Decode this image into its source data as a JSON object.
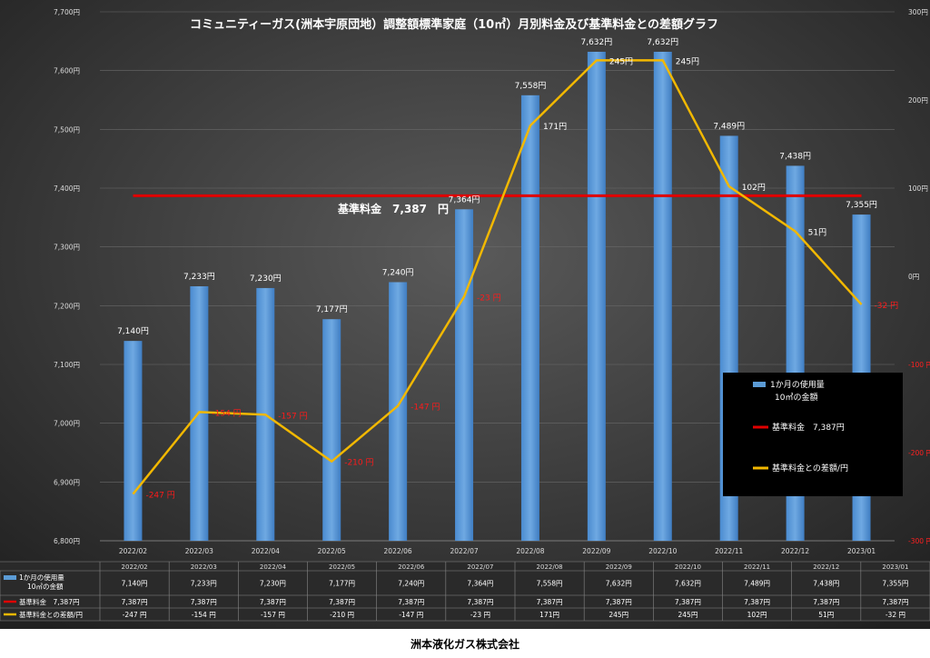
{
  "chart_data": {
    "type": "bar",
    "title": "コミュニティーガス(洲本宇原団地）調整額標準家庭（10㎥）月別料金及び基準料金との差額グラフ",
    "categories": [
      "2022/02",
      "2022/03",
      "2022/04",
      "2022/05",
      "2022/06",
      "2022/07",
      "2022/08",
      "2022/09",
      "2022/10",
      "2022/11",
      "2022/12",
      "2023/01"
    ],
    "series": [
      {
        "name": "1か月の使用量\n10㎥の金額",
        "type": "bar",
        "axis": "left",
        "color": "#5b9bd5",
        "values": [
          7140,
          7233,
          7230,
          7177,
          7240,
          7364,
          7558,
          7632,
          7632,
          7489,
          7438,
          7355
        ],
        "labels": [
          "7,140円",
          "7,233円",
          "7,230円",
          "7,177円",
          "7,240円",
          "7,364円",
          "7,558円",
          "7,632円",
          "7,632円",
          "7,489円",
          "7,438円",
          "7,355円"
        ]
      },
      {
        "name": "基準料金　7,387円",
        "type": "line",
        "axis": "left",
        "color": "#e00000",
        "values": [
          7387,
          7387,
          7387,
          7387,
          7387,
          7387,
          7387,
          7387,
          7387,
          7387,
          7387,
          7387
        ]
      },
      {
        "name": "基準料金との差額/円",
        "type": "line",
        "axis": "right",
        "color": "#f2b800",
        "values": [
          -247,
          -154,
          -157,
          -210,
          -147,
          -23,
          171,
          245,
          245,
          102,
          51,
          -32
        ],
        "labels": [
          "-247 円",
          "-154 円",
          "-157 円",
          "-210 円",
          "-147 円",
          "-23 円",
          "171円",
          "245円",
          "245円",
          "102円",
          "51円",
          "-32 円"
        ]
      }
    ],
    "y_left": {
      "min": 6800,
      "max": 7700,
      "step": 100,
      "ticks": [
        "6,800円",
        "6,900円",
        "7,000円",
        "7,100円",
        "7,200円",
        "7,300円",
        "7,400円",
        "7,500円",
        "7,600円",
        "7,700円"
      ]
    },
    "y_right": {
      "min": -300,
      "max": 300,
      "step": 100,
      "ticks": [
        "-300 円",
        "-200 円",
        "-100 円",
        "0円",
        "100円",
        "200円",
        "300円"
      ]
    },
    "annotation": "基準料金　7,387　円",
    "legend_position": "right",
    "grid": true,
    "table": {
      "headers": [
        "2022/02",
        "2022/03",
        "2022/04",
        "2022/05",
        "2022/06",
        "2022/07",
        "2022/08",
        "2022/09",
        "2022/10",
        "2022/11",
        "2022/12",
        "2023/01"
      ],
      "rows": [
        {
          "label": "1か月の使用量\n10㎥の金額",
          "cells": [
            "7,140円",
            "7,233円",
            "7,230円",
            "7,177円",
            "7,240円",
            "7,364円",
            "7,558円",
            "7,632円",
            "7,632円",
            "7,489円",
            "7,438円",
            "7,355円"
          ]
        },
        {
          "label": "基準料金　7,387円",
          "cells": [
            "7,387円",
            "7,387円",
            "7,387円",
            "7,387円",
            "7,387円",
            "7,387円",
            "7,387円",
            "7,387円",
            "7,387円",
            "7,387円",
            "7,387円",
            "7,387円"
          ]
        },
        {
          "label": "基準料金との差額/円",
          "cells": [
            "-247 円",
            "-154 円",
            "-157 円",
            "-210 円",
            "-147 円",
            "-23 円",
            "171円",
            "245円",
            "245円",
            "102円",
            "51円",
            "-32 円"
          ]
        }
      ]
    }
  },
  "footer": "洲本液化ガス株式会社"
}
